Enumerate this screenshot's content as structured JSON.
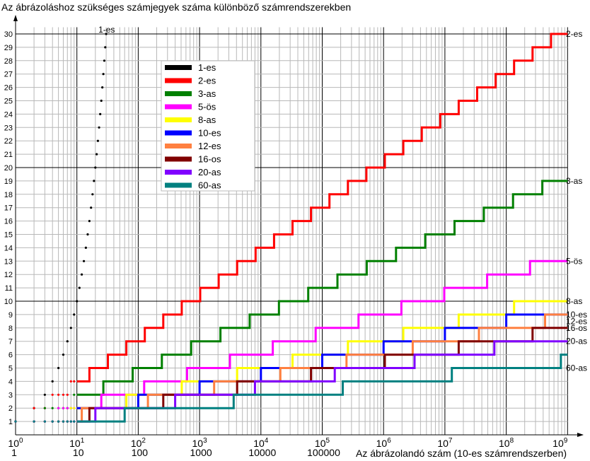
{
  "chart_data": {
    "type": "line",
    "title": "Az ábrázoláshoz szükséges számjegyek száma különböző számrendszerekben",
    "xlabel": "Az ábrázolandó szám (10-es számrendszerben)",
    "ylabel": "",
    "x_scale": "log10",
    "xlim": [
      1,
      1000000000
    ],
    "ylim": [
      0,
      30
    ],
    "grid": true,
    "legend_placement": "top-left",
    "y_ticks": [
      1,
      2,
      3,
      4,
      5,
      6,
      7,
      8,
      9,
      10,
      11,
      12,
      13,
      14,
      15,
      16,
      17,
      18,
      19,
      20,
      21,
      22,
      23,
      24,
      25,
      26,
      27,
      28,
      29,
      30
    ],
    "x_tick_labels_power": [
      {
        "base": "10",
        "exp": "0"
      },
      {
        "base": "10",
        "exp": "1"
      },
      {
        "base": "10",
        "exp": "2"
      },
      {
        "base": "10",
        "exp": "3"
      },
      {
        "base": "10",
        "exp": "4"
      },
      {
        "base": "10",
        "exp": "5"
      },
      {
        "base": "10",
        "exp": "6"
      },
      {
        "base": "10",
        "exp": "7"
      },
      {
        "base": "10",
        "exp": "8"
      },
      {
        "base": "10",
        "exp": "9"
      }
    ],
    "x_tick_labels_decimal": [
      "1",
      "10",
      "100",
      "1000",
      "10000",
      "100000"
    ],
    "series": [
      {
        "name": "1-es",
        "base": 1,
        "color": "#000000",
        "end_label": "1-es"
      },
      {
        "name": "2-es",
        "base": 2,
        "color": "#ff0000",
        "end_label": "2-es"
      },
      {
        "name": "3-as",
        "base": 3,
        "color": "#008000",
        "end_label": "3-as"
      },
      {
        "name": "5-ös",
        "base": 5,
        "color": "#ff00ff",
        "end_label": "5-ös"
      },
      {
        "name": "8-as",
        "base": 8,
        "color": "#ffff00",
        "end_label": "8-as"
      },
      {
        "name": "10-es",
        "base": 10,
        "color": "#0000ff",
        "end_label": "10-es"
      },
      {
        "name": "12-es",
        "base": 12,
        "color": "#ff8040",
        "end_label": "12-es"
      },
      {
        "name": "16-os",
        "base": 16,
        "color": "#800000",
        "end_label": "16-os"
      },
      {
        "name": "20-as",
        "base": 20,
        "color": "#8000ff",
        "end_label": "20-as"
      },
      {
        "name": "60-as",
        "base": 60,
        "color": "#008080",
        "end_label": "60-as"
      }
    ]
  }
}
